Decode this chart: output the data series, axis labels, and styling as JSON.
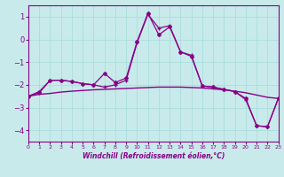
{
  "xlabel": "Windchill (Refroidissement éolien,°C)",
  "x": [
    0,
    1,
    2,
    3,
    4,
    5,
    6,
    7,
    8,
    9,
    10,
    11,
    12,
    13,
    14,
    15,
    16,
    17,
    18,
    19,
    20,
    21,
    22,
    23
  ],
  "line1": [
    -2.5,
    -2.3,
    -1.8,
    -1.8,
    -1.85,
    -1.95,
    -2.0,
    -1.5,
    -1.9,
    -1.7,
    -0.1,
    1.15,
    0.2,
    0.55,
    -0.55,
    -0.75,
    -2.05,
    -2.1,
    -2.2,
    -2.3,
    -2.6,
    -3.8,
    -3.85,
    -2.6
  ],
  "line2": [
    -2.5,
    -2.35,
    -1.8,
    -1.8,
    -1.85,
    -1.95,
    -2.0,
    -2.1,
    -2.0,
    -1.8,
    -0.15,
    1.1,
    0.5,
    0.6,
    -0.55,
    -0.7,
    -2.05,
    -2.1,
    -2.2,
    -2.3,
    -2.65,
    -3.8,
    -3.85,
    -2.6
  ],
  "line3": [
    -2.5,
    -2.42,
    -2.38,
    -2.32,
    -2.28,
    -2.25,
    -2.22,
    -2.2,
    -2.18,
    -2.16,
    -2.14,
    -2.12,
    -2.1,
    -2.1,
    -2.1,
    -2.12,
    -2.14,
    -2.18,
    -2.22,
    -2.28,
    -2.35,
    -2.45,
    -2.55,
    -2.6
  ],
  "line_color": "#880088",
  "bg_color": "#c8eaea",
  "grid_color": "#aadddd",
  "ylim": [
    -4.5,
    1.5
  ],
  "yticks": [
    1,
    0,
    -1,
    -2,
    -3,
    -4
  ],
  "xlim": [
    0,
    23
  ]
}
